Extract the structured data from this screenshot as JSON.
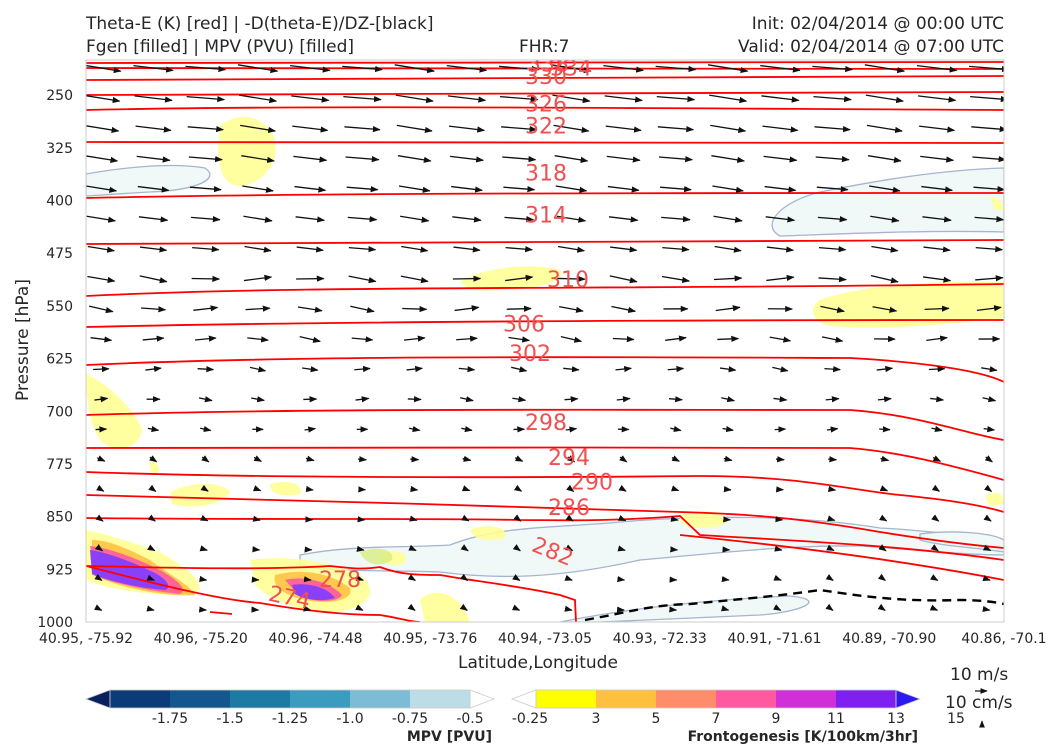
{
  "header": {
    "title_line1": "Theta-E (K) [red] | -D(theta-E)/DZ-[black]",
    "title_line2": "Fgen [filled] | MPV (PVU) [filled]",
    "fhr": "FHR:7",
    "init": "Init: 02/04/2014 @ 00:00 UTC",
    "valid": "Valid: 02/04/2014 @ 07:00 UTC"
  },
  "chart_data": {
    "type": "cross-section",
    "xlabel": "Latitude,Longitude",
    "ylabel": "Pressure [hPa]",
    "ylim": [
      1000,
      200
    ],
    "y_scale": "linear-inverted",
    "x_ticks": [
      "40.95, -75.92",
      "40.96, -75.20",
      "40.96, -74.48",
      "40.95, -73.76",
      "40.94, -73.05",
      "40.93, -72.33",
      "40.91, -71.61",
      "40.89, -70.90",
      "40.86, -70.1"
    ],
    "y_ticks": [
      250,
      325,
      400,
      475,
      550,
      625,
      700,
      775,
      850,
      925,
      1000
    ],
    "theta_e_contours": [
      {
        "value": "338",
        "pressure": 205
      },
      {
        "value": "334",
        "pressure": 211
      },
      {
        "value": "330",
        "pressure": 223
      },
      {
        "value": "326",
        "pressure": 262
      },
      {
        "value": "322",
        "pressure": 293
      },
      {
        "value": "318",
        "pressure": 360
      },
      {
        "value": "314",
        "pressure": 420
      },
      {
        "value": "310",
        "pressure": 512
      },
      {
        "value": "306",
        "pressure": 575
      },
      {
        "value": "302",
        "pressure": 617
      },
      {
        "value": "298",
        "pressure": 715
      },
      {
        "value": "294",
        "pressure": 765
      },
      {
        "value": "290",
        "pressure": 800
      },
      {
        "value": "286",
        "pressure": 836
      },
      {
        "value": "282",
        "pressure": 898
      },
      {
        "value": "278",
        "pressure": 939
      },
      {
        "value": "274",
        "pressure": 964
      }
    ],
    "reference_vectors": {
      "horizontal": "10 m/s",
      "vertical": "10 cm/s"
    },
    "colorbars": [
      {
        "title": "MPV [PVU]",
        "ticks": [
          "-1.75",
          "-1.5",
          "-1.25",
          "-1.0",
          "-0.75",
          "-0.5",
          "-0.25"
        ],
        "colors": [
          "#08205e",
          "#0c3c78",
          "#14568e",
          "#1e7aa4",
          "#3c9cc0",
          "#7cbcd4",
          "#bcdce6",
          "#ffffff"
        ]
      },
      {
        "title": "Frontogenesis [K/100km/3hr]",
        "ticks": [
          "3",
          "5",
          "7",
          "9",
          "11",
          "13",
          "15"
        ],
        "colors": [
          "#ffffff",
          "#ffff00",
          "#ffc040",
          "#ff8c6a",
          "#ff5aa0",
          "#d030d8",
          "#8020f0",
          "#2a1af0"
        ]
      }
    ]
  },
  "colors": {
    "theta_e": "#ff0000",
    "label": "#f05050",
    "arrows": "#111111"
  }
}
